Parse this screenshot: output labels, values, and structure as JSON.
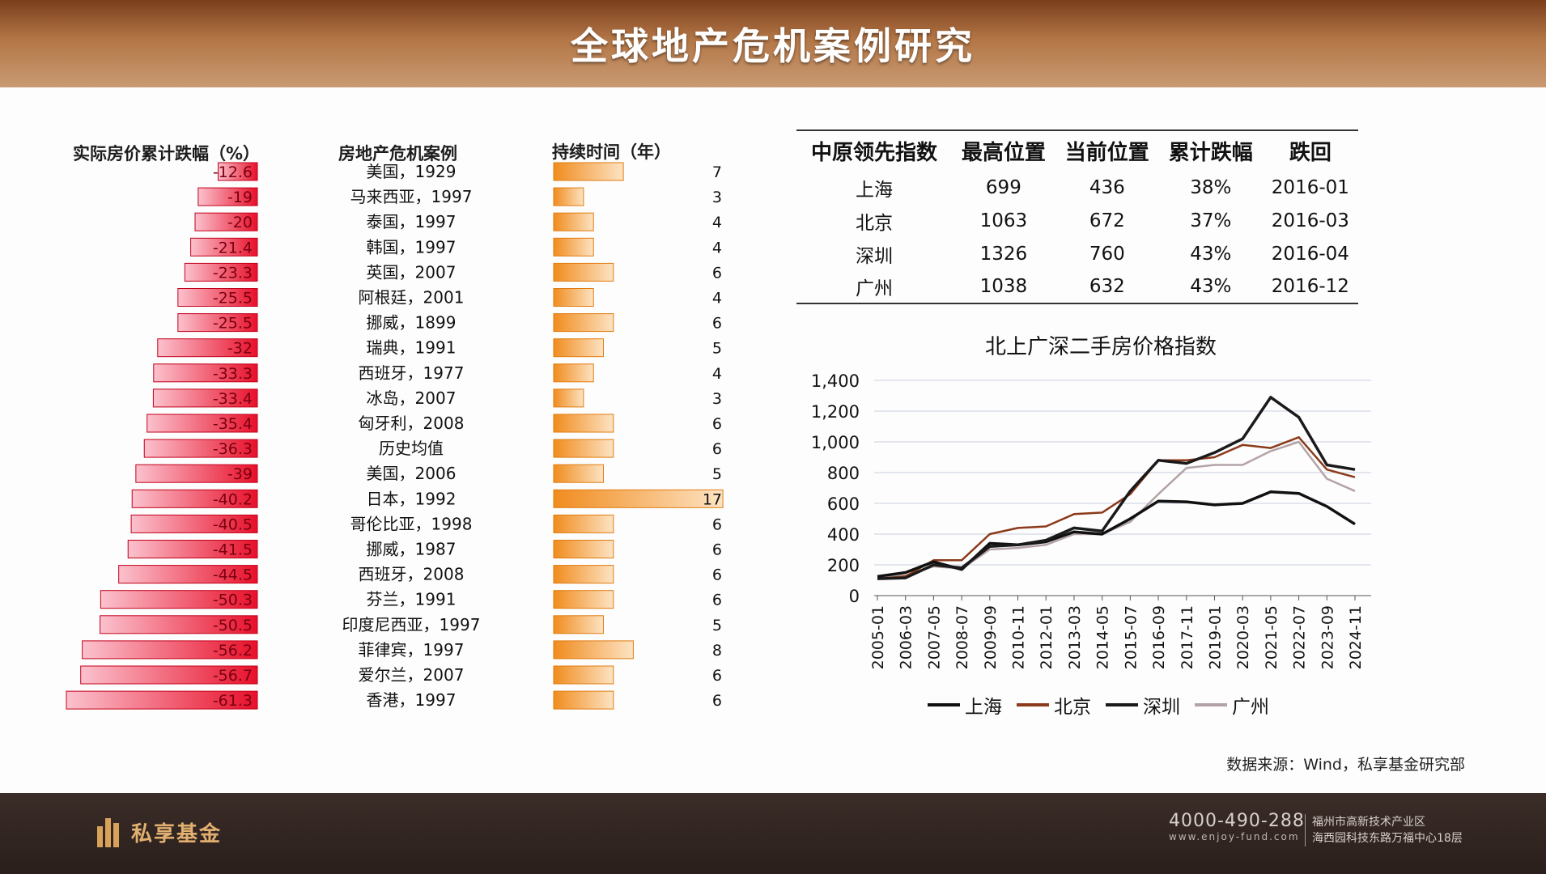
{
  "title": "全球地产危机案例研究",
  "left_panel": {
    "col_drop": "实际房价累计跌幅（%）",
    "col_case": "房地产危机案例",
    "col_duration": "持续时间（年）"
  },
  "table": {
    "headers": [
      "中原领先指数",
      "最高位置",
      "当前位置",
      "累计跌幅",
      "跌回"
    ],
    "rows": [
      [
        "上海",
        "699",
        "436",
        "38%",
        "2016-01"
      ],
      [
        "北京",
        "1063",
        "672",
        "37%",
        "2016-03"
      ],
      [
        "深圳",
        "1326",
        "760",
        "43%",
        "2016-04"
      ],
      [
        "广州",
        "1038",
        "632",
        "43%",
        "2016-12"
      ]
    ]
  },
  "source": "数据来源：Wind，私享基金研究部",
  "footer": {
    "logo": "私享基金",
    "phone": "4000-490-288",
    "website": "www.enjoy-fund.com",
    "address_line1": "福州市高新技术产业区",
    "address_line2": "海西园科技东路万福中心18层"
  },
  "colors": {
    "bar_red": "#e8102a",
    "bar_pink": "#f7a1b3",
    "bar_orange": "#f08c1e",
    "bar_light": "#fde3c3",
    "shanghai": "#111111",
    "beijing": "#8b3a1a",
    "shenzhen": "#1a1a1a",
    "guangzhou": "#b3a3a6"
  },
  "chart_data": [
    {
      "type": "bar",
      "categories": [
        "美国，1929",
        "马来西亚，1997",
        "泰国，1997",
        "韩国，1997",
        "英国，2007",
        "阿根廷，2001",
        "挪威，1899",
        "瑞典，1991",
        "西班牙，1977",
        "冰岛，2007",
        "匈牙利，2008",
        "历史均值",
        "美国，2006",
        "日本，1992",
        "哥伦比亚，1998",
        "挪威，1987",
        "西班牙，2008",
        "芬兰，1991",
        "印度尼西亚，1997",
        "菲律宾，1997",
        "爱尔兰，2007",
        "香港，1997"
      ],
      "series": [
        {
          "name": "实际房价累计跌幅（%）",
          "values": [
            -12.6,
            -19,
            -20,
            -21.4,
            -23.3,
            -25.5,
            -25.5,
            -32,
            -33.3,
            -33.4,
            -35.4,
            -36.3,
            -39,
            -40.2,
            -40.5,
            -41.5,
            -44.5,
            -50.3,
            -50.5,
            -56.2,
            -56.7,
            -61.3
          ]
        },
        {
          "name": "持续时间（年）",
          "values": [
            7,
            3,
            4,
            4,
            6,
            4,
            6,
            5,
            4,
            3,
            6,
            6,
            5,
            17,
            6,
            6,
            6,
            6,
            5,
            8,
            6,
            6
          ]
        }
      ]
    },
    {
      "type": "line",
      "title": "北上广深二手房价格指数",
      "x": [
        "2005-01",
        "2006-03",
        "2007-05",
        "2008-07",
        "2009-09",
        "2010-11",
        "2012-01",
        "2013-03",
        "2014-05",
        "2015-07",
        "2016-09",
        "2017-11",
        "2019-01",
        "2020-03",
        "2021-05",
        "2022-07",
        "2023-09",
        "2024-11"
      ],
      "ylim": [
        0,
        1400
      ],
      "yticks": [
        "0",
        "200",
        "400",
        "600",
        "800",
        "1,000",
        "1,200",
        "1,400"
      ],
      "grid": true,
      "legend": "bottom",
      "series": [
        {
          "name": "上海",
          "values": [
            125,
            150,
            220,
            170,
            340,
            330,
            350,
            415,
            400,
            500,
            615,
            610,
            590,
            600,
            675,
            665,
            580,
            465
          ]
        },
        {
          "name": "北京",
          "values": [
            110,
            125,
            230,
            230,
            400,
            440,
            450,
            530,
            540,
            660,
            880,
            880,
            900,
            980,
            960,
            1030,
            820,
            770
          ]
        },
        {
          "name": "深圳",
          "values": [
            110,
            115,
            200,
            180,
            320,
            330,
            360,
            440,
            420,
            680,
            880,
            860,
            930,
            1020,
            1290,
            1160,
            850,
            820
          ]
        },
        {
          "name": "广州",
          "values": [
            115,
            130,
            190,
            175,
            300,
            310,
            330,
            400,
            400,
            480,
            660,
            830,
            850,
            850,
            940,
            1000,
            760,
            680
          ]
        }
      ]
    }
  ]
}
